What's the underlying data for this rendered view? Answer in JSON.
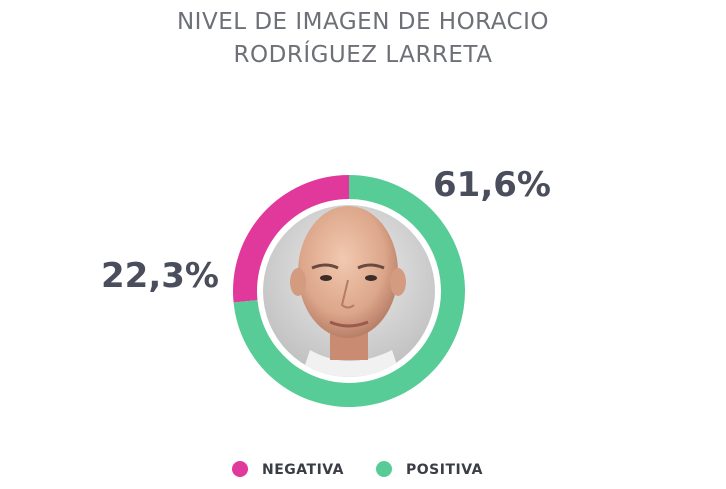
{
  "title_lines": [
    "NIVEL DE IMAGEN DE HORACIO",
    "RODRÍGUEZ LARRETA"
  ],
  "chart_data": {
    "type": "pie",
    "subtype": "donut",
    "title": "NIVEL DE IMAGEN DE HORACIO RODRÍGUEZ LARRETA",
    "slices": [
      {
        "name": "NEGATIVA",
        "value": 22.3,
        "label": "22,3%",
        "color": "#e0399b"
      },
      {
        "name": "POSITIVA",
        "value": 61.6,
        "label": "61,6%",
        "color": "#58cc96"
      }
    ],
    "legend_position": "bottom",
    "center_image": "portrait"
  }
}
